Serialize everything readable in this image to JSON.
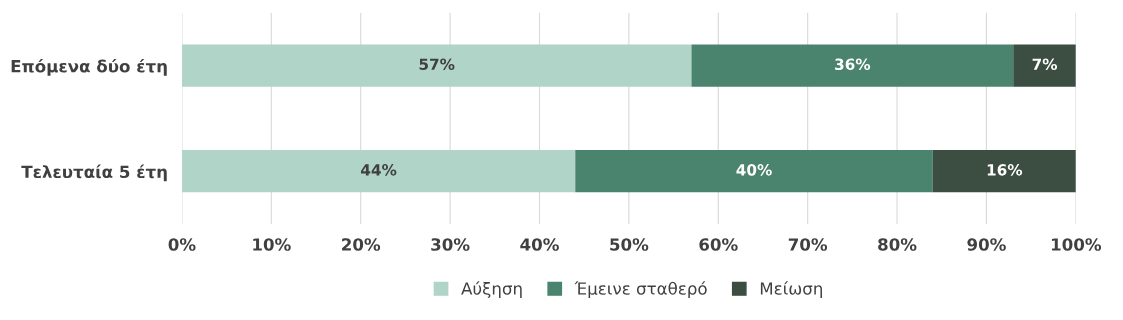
{
  "chart_data": {
    "type": "bar",
    "orientation": "horizontal",
    "stacked": true,
    "categories": [
      "Επόμενα δύο έτη",
      "Τελευταία 5 έτη"
    ],
    "series": [
      {
        "name": "Αύξηση",
        "color": "#b0d4c8",
        "values": [
          57,
          44
        ],
        "value_labels": [
          "57%",
          "44%"
        ]
      },
      {
        "name": "Έμεινε σταθερό",
        "color": "#4a846f",
        "values": [
          36,
          40
        ],
        "value_labels": [
          "36%",
          "40%"
        ]
      },
      {
        "name": "Μείωση",
        "color": "#3b4e41",
        "values": [
          7,
          16
        ],
        "value_labels": [
          "7%",
          "16%"
        ]
      }
    ],
    "xlim": [
      0,
      100
    ],
    "xticks": [
      {
        "value": 0,
        "label": "0%"
      },
      {
        "value": 10,
        "label": "10%"
      },
      {
        "value": 20,
        "label": "20%"
      },
      {
        "value": 30,
        "label": "30%"
      },
      {
        "value": 40,
        "label": "40%"
      },
      {
        "value": 50,
        "label": "50%"
      },
      {
        "value": 60,
        "label": "60%"
      },
      {
        "value": 70,
        "label": "70%"
      },
      {
        "value": 80,
        "label": "80%"
      },
      {
        "value": 90,
        "label": "90%"
      },
      {
        "value": 100,
        "label": "100%"
      }
    ],
    "grid": "x",
    "legend": "bottom"
  }
}
